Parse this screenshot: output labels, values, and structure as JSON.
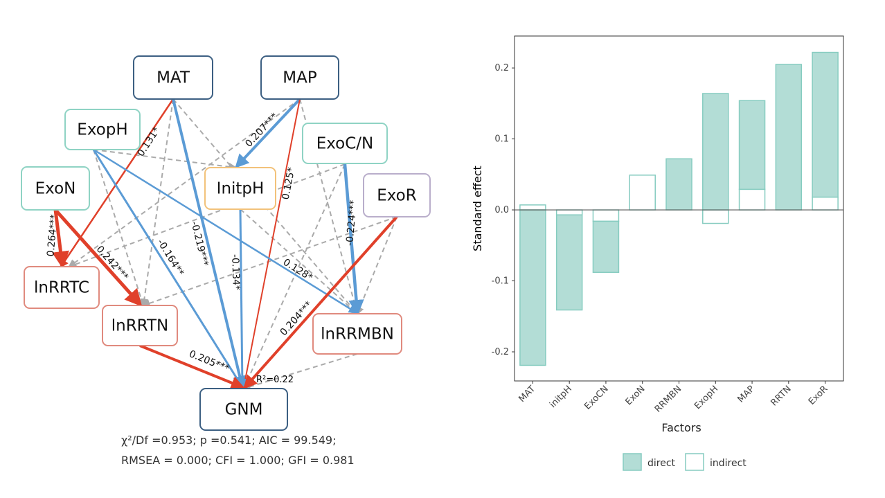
{
  "diagram": {
    "nodes": [
      "MAT",
      "MAP",
      "ExopH",
      "ExoC/N",
      "ExoN",
      "InitpH",
      "ExoR",
      "lnRRTC",
      "lnRRTN",
      "lnRRMBN",
      "GNM"
    ],
    "edges": [
      "0.131*",
      "-0.219***",
      "0.207***",
      "0.125*",
      "-0.164**",
      "0.128*",
      "-0.224***",
      "0.264***",
      "0.242***",
      "-0.134*",
      "0.204***",
      "0.205***"
    ],
    "r_squared": "R²=0.22",
    "fit": [
      "χ²/Df =0.953; p =0.541; AIC = 99.549;",
      "RMSEA = 0.000; CFI = 1.000; GFI = 0.981"
    ]
  },
  "chart_data": {
    "type": "bar",
    "stacked": true,
    "x_label": "Factors",
    "y_label": "Standard effect",
    "categories": [
      "MAT",
      "initpH",
      "ExoCN",
      "ExoN",
      "RRMBN",
      "ExopH",
      "MAP",
      "RRTN",
      "ExoR"
    ],
    "series": [
      {
        "name": "direct",
        "color": "#b3ddd6",
        "edge": "#86ccc0",
        "values": [
          -0.219,
          -0.134,
          -0.072,
          0,
          0.072,
          0.164,
          0.125,
          0.205,
          0.204
        ]
      },
      {
        "name": "indirect",
        "color": "#ffffff",
        "edge": "#86ccc0",
        "values": [
          0.007,
          -0.007,
          -0.016,
          0.049,
          0,
          -0.019,
          0.029,
          0,
          0.018
        ]
      }
    ],
    "ylim": [
      -0.241,
      0.245
    ],
    "yticks": [
      -0.2,
      -0.1,
      {
        "value": 0,
        "label": "0.0"
      },
      0.1,
      0.2
    ]
  }
}
